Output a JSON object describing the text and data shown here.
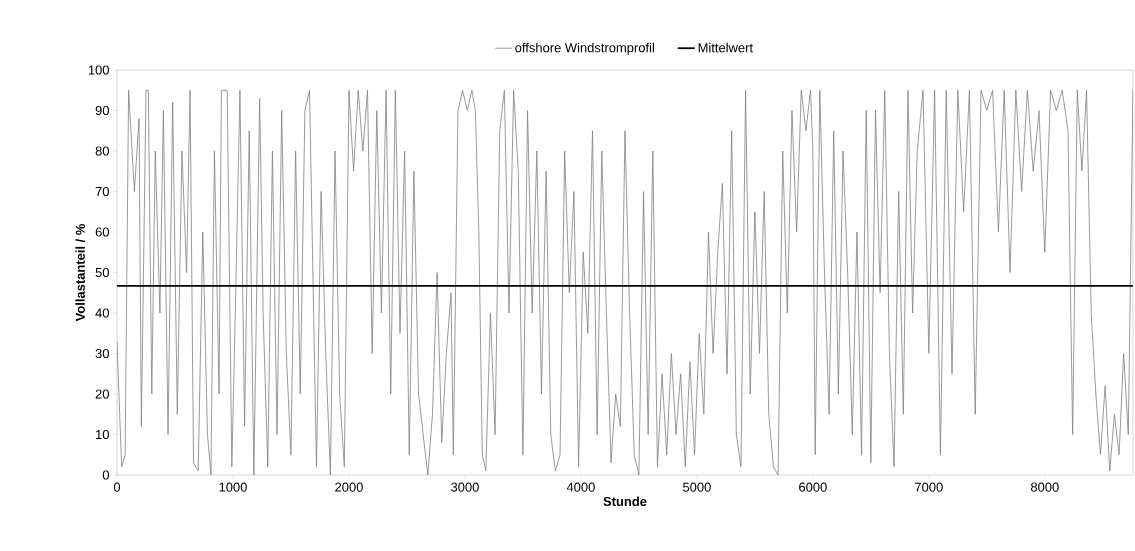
{
  "chart_data": {
    "type": "line",
    "xlabel": "Stunde",
    "ylabel": "Vollastanteil / %",
    "xlim": [
      0,
      8760
    ],
    "ylim": [
      0,
      100
    ],
    "xticks": [
      0,
      1000,
      2000,
      3000,
      4000,
      5000,
      6000,
      7000,
      8000
    ],
    "yticks": [
      0,
      10,
      20,
      30,
      40,
      50,
      60,
      70,
      80,
      90,
      100
    ],
    "legend": "top",
    "marker": "none",
    "line_style": "solid",
    "series": [
      {
        "name": "offshore Windstromprofil",
        "color": "#808080",
        "x": [
          0,
          40,
          70,
          100,
          150,
          190,
          210,
          250,
          270,
          300,
          330,
          370,
          400,
          440,
          480,
          520,
          560,
          600,
          630,
          660,
          700,
          740,
          780,
          810,
          840,
          880,
          900,
          950,
          990,
          1020,
          1060,
          1100,
          1140,
          1180,
          1230,
          1260,
          1300,
          1340,
          1380,
          1420,
          1460,
          1500,
          1540,
          1580,
          1620,
          1660,
          1720,
          1760,
          1800,
          1840,
          1880,
          1920,
          1960,
          2000,
          2040,
          2080,
          2120,
          2160,
          2200,
          2240,
          2280,
          2320,
          2360,
          2400,
          2440,
          2480,
          2520,
          2560,
          2600,
          2640,
          2680,
          2720,
          2760,
          2800,
          2840,
          2880,
          2900,
          2940,
          2980,
          3020,
          3060,
          3090,
          3120,
          3150,
          3180,
          3220,
          3260,
          3300,
          3340,
          3380,
          3420,
          3460,
          3500,
          3540,
          3580,
          3620,
          3660,
          3700,
          3740,
          3780,
          3820,
          3860,
          3900,
          3940,
          3980,
          4020,
          4060,
          4100,
          4140,
          4180,
          4220,
          4260,
          4300,
          4340,
          4380,
          4420,
          4460,
          4500,
          4540,
          4580,
          4620,
          4660,
          4700,
          4740,
          4780,
          4820,
          4860,
          4900,
          4940,
          4980,
          5020,
          5060,
          5100,
          5140,
          5180,
          5220,
          5260,
          5300,
          5340,
          5380,
          5420,
          5460,
          5500,
          5540,
          5580,
          5620,
          5660,
          5700,
          5740,
          5780,
          5820,
          5860,
          5900,
          5940,
          5980,
          6000,
          6020,
          6060,
          6100,
          6140,
          6180,
          6220,
          6260,
          6300,
          6340,
          6380,
          6420,
          6460,
          6500,
          6540,
          6580,
          6620,
          6660,
          6700,
          6740,
          6780,
          6820,
          6860,
          6900,
          6950,
          7000,
          7050,
          7100,
          7150,
          7200,
          7250,
          7300,
          7350,
          7400,
          7450,
          7500,
          7550,
          7600,
          7650,
          7700,
          7750,
          7800,
          7850,
          7900,
          7950,
          8000,
          8050,
          8100,
          8150,
          8200,
          8240,
          8280,
          8320,
          8360,
          8400,
          8440,
          8480,
          8520,
          8560,
          8600,
          8640,
          8680,
          8720,
          8760
        ],
        "values": [
          33,
          2,
          5,
          95,
          70,
          88,
          12,
          95,
          95,
          20,
          80,
          40,
          90,
          10,
          92,
          15,
          80,
          50,
          95,
          3,
          1,
          60,
          10,
          0,
          80,
          20,
          95,
          95,
          2,
          40,
          95,
          12,
          85,
          0,
          93,
          40,
          2,
          80,
          10,
          90,
          30,
          5,
          80,
          20,
          90,
          95,
          2,
          70,
          30,
          0,
          80,
          20,
          2,
          95,
          75,
          95,
          80,
          95,
          30,
          90,
          40,
          95,
          20,
          95,
          35,
          80,
          5,
          75,
          20,
          10,
          0,
          15,
          50,
          8,
          30,
          45,
          5,
          90,
          95,
          90,
          95,
          90,
          60,
          5,
          1,
          40,
          10,
          85,
          95,
          40,
          95,
          75,
          5,
          90,
          40,
          80,
          20,
          75,
          10,
          1,
          5,
          80,
          45,
          70,
          2,
          55,
          35,
          85,
          10,
          80,
          40,
          3,
          20,
          12,
          85,
          40,
          5,
          0,
          70,
          10,
          80,
          2,
          25,
          5,
          30,
          10,
          25,
          2,
          28,
          5,
          35,
          15,
          60,
          30,
          55,
          72,
          25,
          85,
          10,
          2,
          95,
          20,
          65,
          30,
          70,
          15,
          2,
          0,
          80,
          40,
          90,
          60,
          95,
          85,
          95,
          80,
          5,
          95,
          50,
          15,
          85,
          20,
          80,
          50,
          10,
          60,
          5,
          90,
          3,
          90,
          45,
          95,
          30,
          2,
          70,
          15,
          95,
          40,
          80,
          95,
          30,
          95,
          5,
          95,
          25,
          95,
          65,
          95,
          15,
          95,
          90,
          95,
          60,
          95,
          50,
          95,
          70,
          95,
          75,
          90,
          55,
          95,
          90,
          95,
          85,
          10,
          95,
          75,
          95,
          40,
          20,
          5,
          22,
          1,
          15,
          5,
          30,
          10,
          95
        ]
      },
      {
        "name": "Mittelwert",
        "color": "#000000",
        "x": [
          0,
          8760
        ],
        "values": [
          46.7,
          46.7
        ]
      }
    ]
  }
}
